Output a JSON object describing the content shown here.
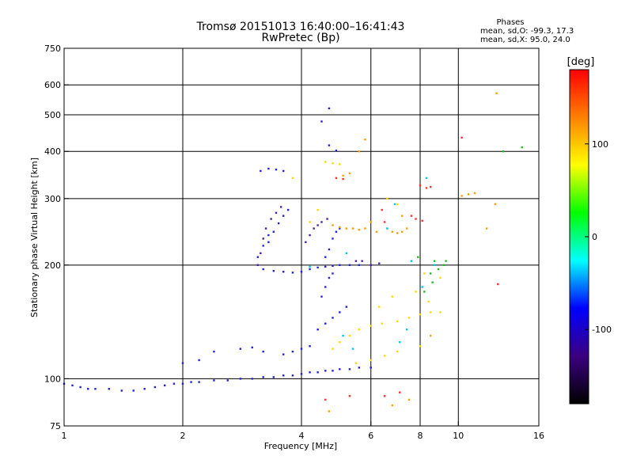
{
  "chart_data": {
    "type": "scatter",
    "title": "Tromsø 20151013 16:40:00–16:41:43",
    "subtitle": "RwPretec (Bp)",
    "xlabel": "Frequency [MHz]",
    "ylabel": "Stationary phase Virtual Height [km]",
    "x_scale": "log",
    "y_scale": "log",
    "xlim": [
      1,
      16
    ],
    "ylim": [
      75,
      750
    ],
    "x_ticks": [
      1,
      2,
      4,
      6,
      8,
      10,
      16
    ],
    "x_ticklabels": [
      "1",
      "2",
      "4",
      "6",
      "8",
      "10",
      "16"
    ],
    "y_ticks": [
      75,
      100,
      200,
      300,
      400,
      500,
      600,
      750
    ],
    "y_ticklabels": [
      "75",
      "100",
      "200",
      "300",
      "400",
      "500",
      "600",
      "750"
    ],
    "grid": true,
    "phase_box": {
      "title": "Phases",
      "line1": "mean, sd,O:  -99.3, 17.3",
      "line2": "mean, sd,X:  95.0, 24.0"
    },
    "colorbar": {
      "label": "[deg]",
      "range": [
        -180,
        180
      ],
      "ticks": [
        100,
        0,
        -100
      ],
      "ticklabels": [
        "100",
        "0",
        "-100"
      ],
      "colors": [
        "#000000",
        "#3b0080",
        "#0000ff",
        "#00ffff",
        "#00ff00",
        "#ffff00",
        "#ff8000",
        "#ff0000"
      ]
    },
    "series": [
      {
        "color": "#2222dd",
        "points": [
          [
            1.0,
            97
          ],
          [
            1.05,
            96
          ],
          [
            1.1,
            95
          ],
          [
            1.15,
            94
          ],
          [
            1.2,
            94
          ],
          [
            1.3,
            94
          ],
          [
            1.4,
            93
          ],
          [
            1.5,
            93
          ],
          [
            1.6,
            94
          ],
          [
            1.7,
            95
          ],
          [
            1.8,
            96
          ],
          [
            1.9,
            97
          ],
          [
            2.0,
            97
          ],
          [
            2.1,
            98
          ],
          [
            2.2,
            98
          ],
          [
            2.4,
            99
          ],
          [
            2.6,
            99
          ],
          [
            2.8,
            100
          ],
          [
            3.0,
            100
          ],
          [
            3.2,
            101
          ],
          [
            3.4,
            101
          ],
          [
            3.6,
            102
          ],
          [
            3.8,
            102
          ],
          [
            4.0,
            103
          ],
          [
            4.2,
            104
          ],
          [
            4.4,
            104
          ],
          [
            4.6,
            105
          ],
          [
            4.8,
            105
          ],
          [
            5.0,
            106
          ],
          [
            5.3,
            106
          ],
          [
            5.6,
            107
          ],
          [
            6.0,
            107
          ],
          [
            3.2,
            195
          ],
          [
            3.4,
            193
          ],
          [
            3.6,
            192
          ],
          [
            3.8,
            191
          ],
          [
            4.0,
            192
          ],
          [
            4.2,
            195
          ],
          [
            4.4,
            197
          ],
          [
            4.6,
            198
          ],
          [
            4.8,
            199
          ],
          [
            5.0,
            200
          ],
          [
            5.3,
            200
          ],
          [
            5.6,
            200
          ],
          [
            3.3,
            230
          ],
          [
            3.4,
            245
          ],
          [
            3.5,
            258
          ],
          [
            3.6,
            270
          ],
          [
            3.7,
            280
          ],
          [
            3.1,
            210
          ],
          [
            3.2,
            225
          ],
          [
            3.3,
            240
          ],
          [
            3.15,
            355
          ],
          [
            3.3,
            360
          ],
          [
            3.45,
            358
          ],
          [
            3.6,
            355
          ],
          [
            4.7,
            520
          ],
          [
            4.5,
            480
          ],
          [
            4.7,
            415
          ],
          [
            4.9,
            402
          ],
          [
            4.6,
            210
          ],
          [
            4.7,
            220
          ],
          [
            4.8,
            235
          ],
          [
            4.9,
            245
          ],
          [
            5.0,
            250
          ],
          [
            4.5,
            165
          ],
          [
            4.6,
            175
          ],
          [
            4.7,
            185
          ],
          [
            4.8,
            190
          ],
          [
            4.4,
            135
          ],
          [
            4.6,
            140
          ],
          [
            4.8,
            145
          ],
          [
            5.0,
            150
          ],
          [
            5.2,
            155
          ],
          [
            3.6,
            116
          ],
          [
            3.8,
            118
          ],
          [
            4.0,
            120
          ],
          [
            4.2,
            122
          ],
          [
            2.8,
            120
          ],
          [
            3.0,
            121
          ],
          [
            3.2,
            118
          ],
          [
            2.0,
            110
          ],
          [
            2.2,
            112
          ],
          [
            2.4,
            118
          ]
        ]
      },
      {
        "color": "#4b1fa8",
        "points": [
          [
            3.1,
            200
          ],
          [
            3.15,
            215
          ],
          [
            3.2,
            235
          ],
          [
            3.25,
            250
          ],
          [
            3.35,
            265
          ],
          [
            3.45,
            275
          ],
          [
            3.55,
            285
          ],
          [
            4.1,
            230
          ],
          [
            4.2,
            240
          ],
          [
            4.3,
            250
          ],
          [
            4.4,
            255
          ],
          [
            4.5,
            260
          ],
          [
            4.65,
            265
          ],
          [
            5.5,
            205
          ],
          [
            5.7,
            205
          ],
          [
            6.0,
            200
          ],
          [
            6.3,
            202
          ]
        ]
      },
      {
        "color": "#ffd800",
        "points": [
          [
            4.8,
            120
          ],
          [
            5.0,
            125
          ],
          [
            5.3,
            130
          ],
          [
            5.6,
            135
          ],
          [
            6.0,
            138
          ],
          [
            6.4,
            140
          ],
          [
            7.0,
            142
          ],
          [
            7.5,
            145
          ],
          [
            8.0,
            148
          ],
          [
            8.5,
            150
          ],
          [
            5.5,
            110
          ],
          [
            6.0,
            112
          ],
          [
            6.5,
            115
          ],
          [
            7.0,
            118
          ],
          [
            8.0,
            122
          ],
          [
            9.0,
            150
          ],
          [
            9.0,
            185
          ],
          [
            8.4,
            160
          ],
          [
            7.8,
            170
          ],
          [
            8.2,
            190
          ],
          [
            4.6,
            375
          ],
          [
            4.8,
            372
          ],
          [
            5.0,
            370
          ],
          [
            6.6,
            300
          ],
          [
            7.0,
            290
          ],
          [
            3.8,
            340
          ],
          [
            4.2,
            260
          ],
          [
            4.4,
            280
          ],
          [
            6.3,
            155
          ],
          [
            6.8,
            165
          ]
        ]
      },
      {
        "color": "#ffa000",
        "points": [
          [
            4.8,
            255
          ],
          [
            5.0,
            252
          ],
          [
            5.2,
            250
          ],
          [
            5.4,
            250
          ],
          [
            5.6,
            248
          ],
          [
            5.8,
            250
          ],
          [
            6.6,
            250
          ],
          [
            6.8,
            245
          ],
          [
            7.0,
            243
          ],
          [
            7.2,
            245
          ],
          [
            7.4,
            250
          ],
          [
            5.1,
            345
          ],
          [
            5.3,
            350
          ],
          [
            5.6,
            400
          ],
          [
            10.2,
            305
          ],
          [
            10.6,
            308
          ],
          [
            11.0,
            310
          ],
          [
            12.5,
            570
          ],
          [
            11.8,
            250
          ],
          [
            12.4,
            290
          ],
          [
            4.7,
            82
          ],
          [
            6.8,
            85
          ],
          [
            7.5,
            88
          ],
          [
            8.5,
            130
          ],
          [
            6.0,
            260
          ],
          [
            6.2,
            245
          ],
          [
            5.8,
            430
          ],
          [
            7.2,
            270
          ]
        ]
      },
      {
        "color": "#ff3030",
        "points": [
          [
            4.9,
            340
          ],
          [
            5.1,
            338
          ],
          [
            8.0,
            325
          ],
          [
            8.3,
            320
          ],
          [
            8.5,
            322
          ],
          [
            7.6,
            270
          ],
          [
            7.8,
            265
          ],
          [
            8.1,
            262
          ],
          [
            6.5,
            260
          ],
          [
            6.4,
            280
          ],
          [
            5.3,
            90
          ],
          [
            6.5,
            90
          ],
          [
            10.2,
            435
          ],
          [
            12.6,
            178
          ],
          [
            4.6,
            88
          ],
          [
            7.1,
            92
          ]
        ]
      },
      {
        "color": "#00c8e8",
        "points": [
          [
            4.2,
            198
          ],
          [
            5.1,
            130
          ],
          [
            5.4,
            120
          ],
          [
            7.1,
            125
          ],
          [
            7.4,
            135
          ],
          [
            8.1,
            175
          ],
          [
            8.7,
            200
          ],
          [
            8.3,
            340
          ],
          [
            6.9,
            290
          ],
          [
            5.2,
            215
          ],
          [
            6.6,
            250
          ],
          [
            7.6,
            205
          ]
        ]
      },
      {
        "color": "#22bb22",
        "points": [
          [
            8.5,
            190
          ],
          [
            8.9,
            195
          ],
          [
            9.2,
            200
          ],
          [
            8.7,
            205
          ],
          [
            14.5,
            410
          ],
          [
            13.0,
            400
          ],
          [
            8.2,
            170
          ],
          [
            8.6,
            180
          ],
          [
            9.3,
            205
          ],
          [
            7.9,
            210
          ]
        ]
      }
    ]
  }
}
